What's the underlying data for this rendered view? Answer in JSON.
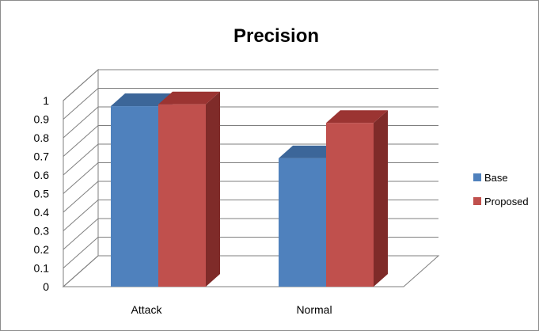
{
  "chart_data": {
    "type": "bar",
    "title": "Precision",
    "categories": [
      "Attack",
      "Normal"
    ],
    "series": [
      {
        "name": "Base",
        "values": [
          0.97,
          0.69
        ],
        "color": "#4f81bd",
        "side_color": "#385d8a",
        "top_color": "#3c6699"
      },
      {
        "name": "Proposed",
        "values": [
          0.98,
          0.88
        ],
        "color": "#c0504d",
        "side_color": "#7f2b29",
        "top_color": "#9b3432"
      }
    ],
    "ylim": [
      0,
      1
    ],
    "yticks": [
      "0",
      "0.1",
      "0.2",
      "0.3",
      "0.4",
      "0.5",
      "0.6",
      "0.7",
      "0.8",
      "0.9",
      "1"
    ],
    "grid": true,
    "legend": "right",
    "xlabel": "",
    "ylabel": ""
  }
}
